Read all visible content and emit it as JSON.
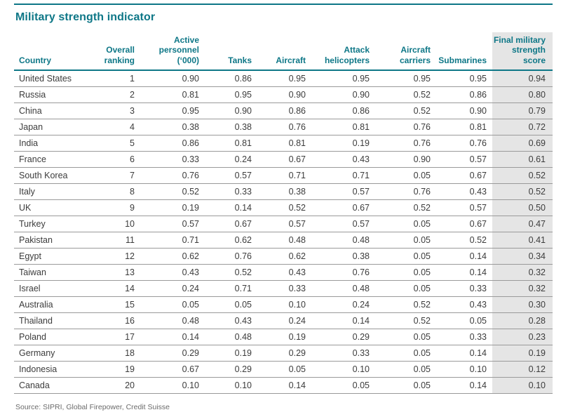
{
  "chart_data": {
    "type": "table",
    "title": "Military strength indicator",
    "source": "Source: SIPRI, Global Firepower, Credit Suisse",
    "columns": [
      "Country",
      "Overall ranking",
      "Active personnel (‘000)",
      "Tanks",
      "Aircraft",
      "Attack helicopters",
      "Aircraft carriers",
      "Submarines",
      "Final military strength score"
    ],
    "highlighted_column": "Final military strength score",
    "rows": [
      [
        "United States",
        "1",
        "0.90",
        "0.86",
        "0.95",
        "0.95",
        "0.95",
        "0.95",
        "0.94"
      ],
      [
        "Russia",
        "2",
        "0.81",
        "0.95",
        "0.90",
        "0.90",
        "0.52",
        "0.86",
        "0.80"
      ],
      [
        "China",
        "3",
        "0.95",
        "0.90",
        "0.86",
        "0.86",
        "0.52",
        "0.90",
        "0.79"
      ],
      [
        "Japan",
        "4",
        "0.38",
        "0.38",
        "0.76",
        "0.81",
        "0.76",
        "0.81",
        "0.72"
      ],
      [
        "India",
        "5",
        "0.86",
        "0.81",
        "0.81",
        "0.19",
        "0.76",
        "0.76",
        "0.69"
      ],
      [
        "France",
        "6",
        "0.33",
        "0.24",
        "0.67",
        "0.43",
        "0.90",
        "0.57",
        "0.61"
      ],
      [
        "South Korea",
        "7",
        "0.76",
        "0.57",
        "0.71",
        "0.71",
        "0.05",
        "0.67",
        "0.52"
      ],
      [
        "Italy",
        "8",
        "0.52",
        "0.33",
        "0.38",
        "0.57",
        "0.76",
        "0.43",
        "0.52"
      ],
      [
        "UK",
        "9",
        "0.19",
        "0.14",
        "0.52",
        "0.67",
        "0.52",
        "0.57",
        "0.50"
      ],
      [
        "Turkey",
        "10",
        "0.57",
        "0.67",
        "0.57",
        "0.57",
        "0.05",
        "0.67",
        "0.47"
      ],
      [
        "Pakistan",
        "11",
        "0.71",
        "0.62",
        "0.48",
        "0.48",
        "0.05",
        "0.52",
        "0.41"
      ],
      [
        "Egypt",
        "12",
        "0.62",
        "0.76",
        "0.62",
        "0.38",
        "0.05",
        "0.14",
        "0.34"
      ],
      [
        "Taiwan",
        "13",
        "0.43",
        "0.52",
        "0.43",
        "0.76",
        "0.05",
        "0.14",
        "0.32"
      ],
      [
        "Israel",
        "14",
        "0.24",
        "0.71",
        "0.33",
        "0.48",
        "0.05",
        "0.33",
        "0.32"
      ],
      [
        "Australia",
        "15",
        "0.05",
        "0.05",
        "0.10",
        "0.24",
        "0.52",
        "0.43",
        "0.30"
      ],
      [
        "Thailand",
        "16",
        "0.48",
        "0.43",
        "0.24",
        "0.14",
        "0.52",
        "0.05",
        "0.28"
      ],
      [
        "Poland",
        "17",
        "0.14",
        "0.48",
        "0.19",
        "0.29",
        "0.05",
        "0.33",
        "0.23"
      ],
      [
        "Germany",
        "18",
        "0.29",
        "0.19",
        "0.29",
        "0.33",
        "0.05",
        "0.14",
        "0.19"
      ],
      [
        "Indonesia",
        "19",
        "0.67",
        "0.29",
        "0.05",
        "0.10",
        "0.05",
        "0.10",
        "0.12"
      ],
      [
        "Canada",
        "20",
        "0.10",
        "0.10",
        "0.14",
        "0.05",
        "0.05",
        "0.14",
        "0.10"
      ]
    ]
  },
  "colors": {
    "accent_teal": "#0e7787",
    "highlight_column_bg": "#e5e5e5",
    "row_divider": "#9a9a9a",
    "body_text": "#3c3c3c",
    "source_text": "#6b6b6b"
  }
}
